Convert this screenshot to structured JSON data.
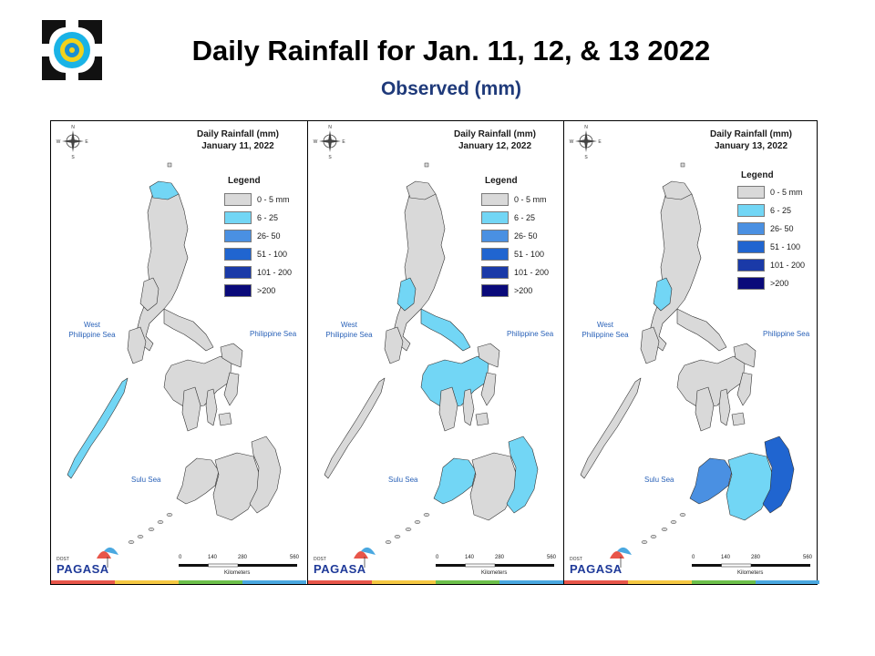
{
  "header": {
    "title": "Daily Rainfall for Jan. 11, 12, & 13 2022",
    "subtitle": "Observed (mm)"
  },
  "map_common": {
    "compass_letters": [
      "N",
      "E",
      "S",
      "W"
    ],
    "legend_title": "Legend",
    "legend_items": [
      {
        "label": "0 - 5 mm",
        "color": "#d9d9d9"
      },
      {
        "label": "6 - 25",
        "color": "#72d6f5"
      },
      {
        "label": "26- 50",
        "color": "#4a90e2"
      },
      {
        "label": "51 - 100",
        "color": "#2065d0"
      },
      {
        "label": "101 - 200",
        "color": "#1a3aa8"
      },
      {
        "label": ">200",
        "color": "#0a0a7a"
      }
    ],
    "seas": {
      "west": "West\nPhilippine Sea",
      "east": "Philippine Sea",
      "sulu": "Sulu Sea"
    },
    "scale_ticks": [
      "0",
      "140",
      "280",
      "560"
    ],
    "scale_unit": "Kilometers",
    "brand": "PAGASA",
    "brand_small": "DOST",
    "footer_colors": [
      "#e8564a",
      "#f5c842",
      "#6cc04a",
      "#4aa8e0"
    ]
  },
  "panels": [
    {
      "title_line1": "Daily Rainfall (mm)",
      "title_line2": "January 11, 2022",
      "rain": {
        "north_tip": "6-25",
        "luzon_west": "0-5",
        "bicol": "0-5",
        "visayas": "0-5",
        "palawan": "6-25",
        "mindanao_west": "0-5",
        "mindanao_central": "0-5",
        "mindanao_east": "0-5"
      }
    },
    {
      "title_line1": "Daily Rainfall (mm)",
      "title_line2": "January 12, 2022",
      "rain": {
        "north_tip": "0-5",
        "luzon_west": "6-25",
        "bicol": "6-25",
        "visayas": "6-25",
        "palawan": "0-5",
        "mindanao_west": "6-25",
        "mindanao_central": "0-5",
        "mindanao_east": "6-25"
      }
    },
    {
      "title_line1": "Daily Rainfall (mm)",
      "title_line2": "January 13, 2022",
      "rain": {
        "north_tip": "0-5",
        "luzon_west": "6-25",
        "bicol": "0-5",
        "visayas": "0-5",
        "palawan": "0-5",
        "mindanao_west": "26-50",
        "mindanao_central": "6-25",
        "mindanao_east": "51-100"
      }
    }
  ]
}
